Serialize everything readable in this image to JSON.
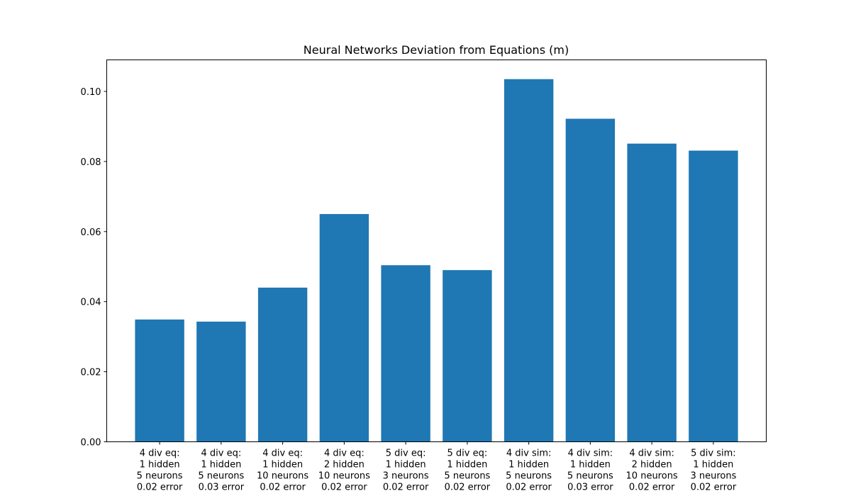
{
  "chart_data": {
    "type": "bar",
    "title": "Neural Networks Deviation from Equations (m)",
    "xlabel": "",
    "ylabel": "",
    "ylim": [
      0,
      0.109
    ],
    "y_ticks": [
      "0.00",
      "0.02",
      "0.04",
      "0.06",
      "0.08",
      "0.10"
    ],
    "grid": false,
    "bar_color": "#1f77b4",
    "categories": [
      [
        "4 div eq:",
        "1 hidden",
        "5 neurons",
        "0.02 error"
      ],
      [
        "4 div eq:",
        "1 hidden",
        "5 neurons",
        "0.03 error"
      ],
      [
        "4 div eq:",
        "1 hidden",
        "10 neurons",
        "0.02 error"
      ],
      [
        "4 div eq:",
        "2 hidden",
        "10 neurons",
        "0.02 error"
      ],
      [
        "5 div eq:",
        "1 hidden",
        "3 neurons",
        "0.02 error"
      ],
      [
        "5 div eq:",
        "1 hidden",
        "5 neurons",
        "0.02 error"
      ],
      [
        "4 div sim:",
        "1 hidden",
        "5 neurons",
        "0.02 error"
      ],
      [
        "4 div sim:",
        "1 hidden",
        "5 neurons",
        "0.03 error"
      ],
      [
        "4 div sim:",
        "2 hidden",
        "10 neurons",
        "0.02 error"
      ],
      [
        "5 div sim:",
        "1 hidden",
        "3 neurons",
        "0.02 error"
      ]
    ],
    "values": [
      0.0349,
      0.0343,
      0.044,
      0.065,
      0.0504,
      0.049,
      0.1035,
      0.0922,
      0.0851,
      0.0831
    ]
  }
}
